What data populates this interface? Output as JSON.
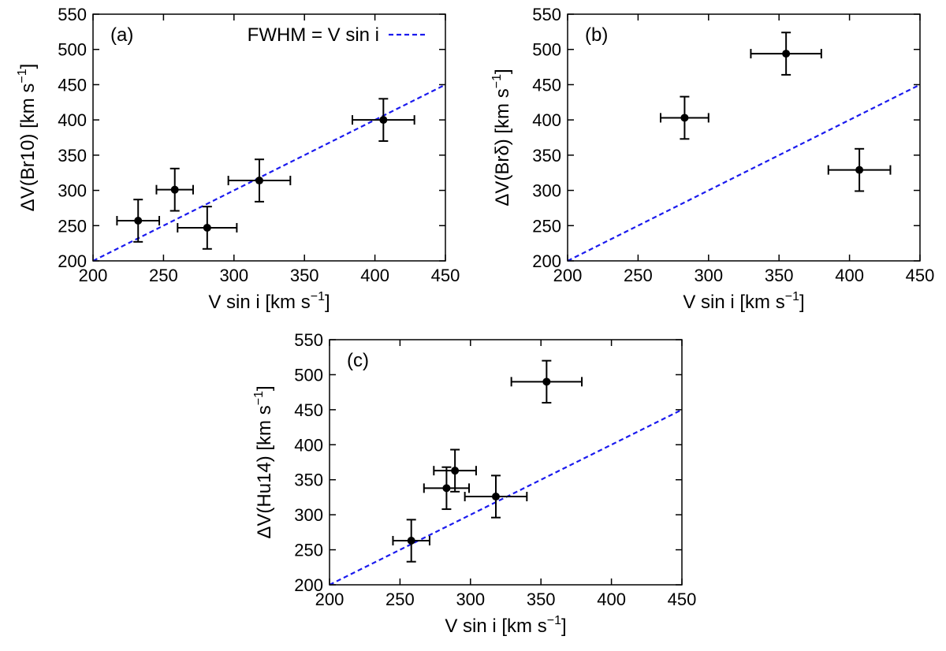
{
  "chart_data": [
    {
      "type": "scatter",
      "panel_label": "(a)",
      "xlabel": "V sin i [km s",
      "xlabel_sup": "−1",
      "xlabel_end": "]",
      "ylabel": "ΔV(Br10) [km s",
      "ylabel_sup": "−1",
      "ylabel_end": "]",
      "xlim": [
        200,
        450
      ],
      "ylim": [
        200,
        550
      ],
      "xticks": [
        200,
        250,
        300,
        350,
        400,
        450
      ],
      "yticks": [
        200,
        250,
        300,
        350,
        400,
        450,
        500,
        550
      ],
      "legend": {
        "label": "FWHM = V sin i",
        "placement": "top-right"
      },
      "reference_line": {
        "name": "FWHM = V sin i",
        "color": "#1a1aee",
        "style": "dashed",
        "slope": 1,
        "intercept": 0
      },
      "points": [
        {
          "x": 232,
          "y": 257,
          "xerr": 15,
          "yerr": 30
        },
        {
          "x": 258,
          "y": 301,
          "xerr": 13,
          "yerr": 30
        },
        {
          "x": 281,
          "y": 247,
          "xerr": 21,
          "yerr": 30
        },
        {
          "x": 318,
          "y": 314,
          "xerr": 22,
          "yerr": 30
        },
        {
          "x": 406,
          "y": 400,
          "xerr": 22,
          "yerr": 30
        }
      ]
    },
    {
      "type": "scatter",
      "panel_label": "(b)",
      "xlabel": "V sin i [km s",
      "xlabel_sup": "−1",
      "xlabel_end": "]",
      "ylabel": "ΔV(Brδ) [km s",
      "ylabel_sup": "−1",
      "ylabel_end": "]",
      "xlim": [
        200,
        450
      ],
      "ylim": [
        200,
        550
      ],
      "xticks": [
        200,
        250,
        300,
        350,
        400,
        450
      ],
      "yticks": [
        200,
        250,
        300,
        350,
        400,
        450,
        500,
        550
      ],
      "reference_line": {
        "name": "FWHM = V sin i",
        "color": "#1a1aee",
        "style": "dashed",
        "slope": 1,
        "intercept": 0
      },
      "points": [
        {
          "x": 283,
          "y": 403,
          "xerr": 17,
          "yerr": 30
        },
        {
          "x": 355,
          "y": 494,
          "xerr": 25,
          "yerr": 30
        },
        {
          "x": 407,
          "y": 329,
          "xerr": 22,
          "yerr": 30
        }
      ]
    },
    {
      "type": "scatter",
      "panel_label": "(c)",
      "xlabel": "V sin i [km s",
      "xlabel_sup": "−1",
      "xlabel_end": "]",
      "ylabel": "ΔV(Hu14) [km s",
      "ylabel_sup": "−1",
      "ylabel_end": "]",
      "xlim": [
        200,
        450
      ],
      "ylim": [
        200,
        550
      ],
      "xticks": [
        200,
        250,
        300,
        350,
        400,
        450
      ],
      "yticks": [
        200,
        250,
        300,
        350,
        400,
        450,
        500,
        550
      ],
      "reference_line": {
        "name": "FWHM = V sin i",
        "color": "#1a1aee",
        "style": "dashed",
        "slope": 1,
        "intercept": 0
      },
      "points": [
        {
          "x": 258,
          "y": 263,
          "xerr": 13,
          "yerr": 30
        },
        {
          "x": 283,
          "y": 338,
          "xerr": 16,
          "yerr": 30
        },
        {
          "x": 289,
          "y": 363,
          "xerr": 15,
          "yerr": 30
        },
        {
          "x": 318,
          "y": 326,
          "xerr": 22,
          "yerr": 30
        },
        {
          "x": 354,
          "y": 490,
          "xerr": 25,
          "yerr": 30
        }
      ]
    }
  ]
}
